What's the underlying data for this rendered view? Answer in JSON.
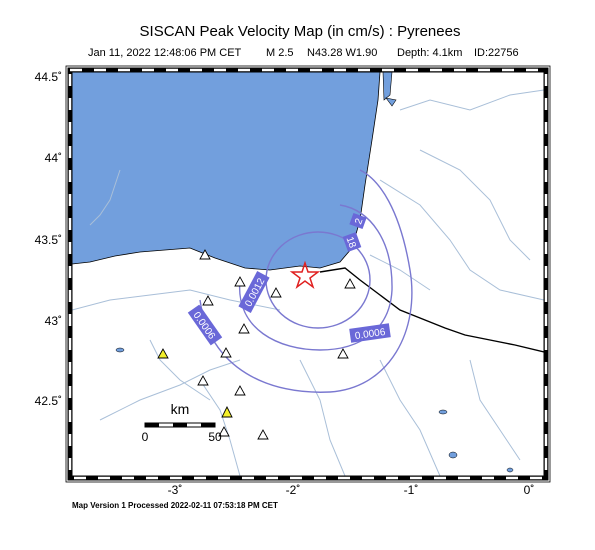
{
  "title": "SISCAN Peak Velocity Map (in cm/s) : Pyrenees",
  "subtitle": {
    "date": "Jan 11, 2022 12:48:06 PM CET",
    "magnitude": "M 2.5",
    "location": "N43.28 W1.90",
    "depth": "Depth: 4.1km",
    "id": "ID:22756"
  },
  "axes": {
    "lat_labels": [
      "44.5˚",
      "44˚",
      "43.5˚",
      "43˚",
      "42.5˚"
    ],
    "lon_labels": [
      "-3˚",
      "-2˚",
      "-1˚",
      "0˚"
    ]
  },
  "contour_labels": [
    "0.0012",
    "0.0006",
    "0.0006",
    "2",
    "18"
  ],
  "scale_bar": {
    "unit": "km",
    "start": "0",
    "end": "50"
  },
  "footer": "Map Version 1 Processed 2022-02-11 07:53:18 PM CET"
}
